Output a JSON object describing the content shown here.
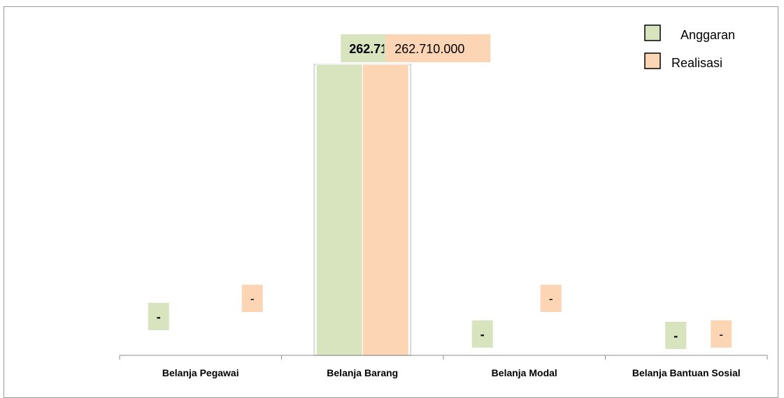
{
  "chart_data": {
    "type": "bar",
    "categories": [
      "Belanja Pegawai",
      "Belanja Barang",
      "Belanja Modal",
      "Belanja Bantuan Sosial"
    ],
    "series": [
      {
        "name": "Anggaran",
        "color": "#d7e4bd",
        "values": [
          0,
          262710000,
          0,
          0
        ],
        "labels": [
          "-",
          "262.710.000",
          "-",
          "-"
        ]
      },
      {
        "name": "Realisasi",
        "color": "#fcd5b5",
        "values": [
          0,
          262710000,
          0,
          0
        ],
        "labels": [
          "-",
          "262.710.000",
          "-",
          "-"
        ]
      }
    ],
    "ylim": [
      0,
      262710000
    ],
    "grid": false,
    "legend": "top-right",
    "title": "",
    "xlabel": "",
    "ylabel": ""
  }
}
